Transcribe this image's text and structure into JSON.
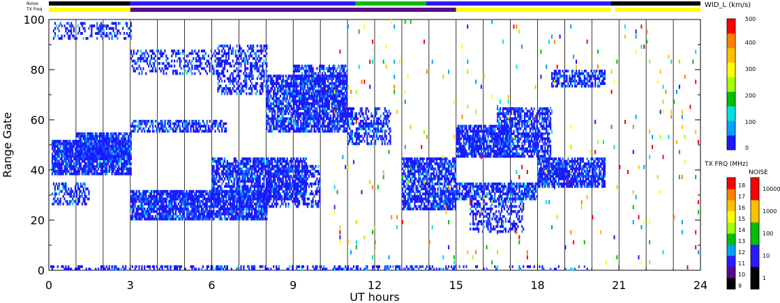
{
  "chart_data": {
    "type": "heatmap",
    "xlabel": "UT hours",
    "ylabel": "Range Gate",
    "xlim": [
      0,
      24
    ],
    "ylim": [
      0,
      100
    ],
    "x_ticks": [
      "0",
      "3",
      "6",
      "9",
      "12",
      "15",
      "18",
      "21",
      "24"
    ],
    "y_ticks": [
      "0",
      "20",
      "40",
      "60",
      "80",
      "100"
    ],
    "grid": "vertical lines each hour",
    "top_bar_labels": [
      "Noise",
      "TX Freq"
    ],
    "noise_bar": [
      {
        "start": 0,
        "end": 3,
        "level": "1"
      },
      {
        "start": 3,
        "end": 11.3,
        "level": "10"
      },
      {
        "start": 11.3,
        "end": 13.9,
        "level": "100"
      },
      {
        "start": 13.9,
        "end": 20.7,
        "level": "10"
      },
      {
        "start": 20.7,
        "end": 24,
        "level": "1"
      }
    ],
    "freq_bar": [
      {
        "start": 0,
        "end": 3,
        "freq_mhz": 14
      },
      {
        "start": 3,
        "end": 15,
        "freq_mhz": 11
      },
      {
        "start": 15,
        "end": 20.7,
        "freq_mhz": 14
      },
      {
        "start": 20.85,
        "end": 24,
        "freq_mhz": 14
      }
    ],
    "velocity_colorbar": {
      "title": "WID_L (km/s)",
      "ticks": [
        "0",
        "100",
        "200",
        "300",
        "400",
        "500"
      ],
      "range": [
        0,
        500
      ],
      "colors": [
        "#1a1aff",
        "#00a0ff",
        "#00e0e0",
        "#00c000",
        "#a0ff00",
        "#ffff00",
        "#ffc000",
        "#ff8000",
        "#ff0000"
      ]
    },
    "freq_colorbar": {
      "title": "TX FRQ (MHz)",
      "ticks": [
        "9",
        "10",
        "11",
        "12",
        "13",
        "14",
        "15",
        "16",
        "17",
        "18"
      ],
      "colors": [
        "#000000",
        "#5a0a8a",
        "#2a1aff",
        "#00a0ff",
        "#00c000",
        "#a0ff00",
        "#ffff00",
        "#ffc000",
        "#ff8000",
        "#ff0000"
      ]
    },
    "noise_colorbar": {
      "title": "NOISE",
      "ticks": [
        "1",
        "10",
        "100",
        "1000",
        "10000"
      ],
      "colors": [
        "#000000",
        "#2a1aff",
        "#00c000",
        "#ffc000",
        "#ff0000"
      ]
    },
    "bands": [
      {
        "t0": 0.1,
        "t1": 3.0,
        "g0": 38,
        "g1": 52,
        "density": 0.85
      },
      {
        "t0": 1.0,
        "t1": 3.0,
        "g0": 44,
        "g1": 55,
        "density": 0.8
      },
      {
        "t0": 0.1,
        "t1": 1.5,
        "g0": 26,
        "g1": 35,
        "density": 0.5
      },
      {
        "t0": 0.1,
        "t1": 3.0,
        "g0": 92,
        "g1": 99,
        "density": 0.35
      },
      {
        "t0": 3.0,
        "t1": 8.0,
        "g0": 20,
        "g1": 32,
        "density": 0.85
      },
      {
        "t0": 6.0,
        "t1": 9.5,
        "g0": 28,
        "g1": 45,
        "density": 0.75
      },
      {
        "t0": 8.0,
        "t1": 11.0,
        "g0": 55,
        "g1": 78,
        "density": 0.75
      },
      {
        "t0": 9.0,
        "t1": 11.0,
        "g0": 65,
        "g1": 82,
        "density": 0.6
      },
      {
        "t0": 8.0,
        "t1": 10.0,
        "g0": 25,
        "g1": 42,
        "density": 0.45
      },
      {
        "t0": 11.0,
        "t1": 12.6,
        "g0": 50,
        "g1": 65,
        "density": 0.55
      },
      {
        "t0": 3.0,
        "t1": 6.5,
        "g0": 55,
        "g1": 60,
        "density": 0.6
      },
      {
        "t0": 3.0,
        "t1": 6.5,
        "g0": 78,
        "g1": 88,
        "density": 0.35
      },
      {
        "t0": 6.2,
        "t1": 8.0,
        "g0": 70,
        "g1": 90,
        "density": 0.45
      },
      {
        "t0": 13.0,
        "t1": 15.0,
        "g0": 24,
        "g1": 45,
        "density": 0.75
      },
      {
        "t0": 15.0,
        "t1": 17.0,
        "g0": 45,
        "g1": 58,
        "density": 0.8
      },
      {
        "t0": 15.0,
        "t1": 18.0,
        "g0": 28,
        "g1": 35,
        "density": 0.75
      },
      {
        "t0": 16.5,
        "t1": 18.5,
        "g0": 45,
        "g1": 65,
        "density": 0.7
      },
      {
        "t0": 18.0,
        "t1": 20.5,
        "g0": 33,
        "g1": 45,
        "density": 0.8
      },
      {
        "t0": 18.5,
        "t1": 20.5,
        "g0": 73,
        "g1": 80,
        "density": 0.6
      },
      {
        "t0": 15.5,
        "t1": 17.5,
        "g0": 15,
        "g1": 28,
        "density": 0.45
      },
      {
        "t0": 0.0,
        "t1": 15.0,
        "g0": 0,
        "g1": 2,
        "density": 0.45
      },
      {
        "t0": 15.0,
        "t1": 20.0,
        "g0": 0,
        "g1": 2,
        "density": 0.2
      }
    ],
    "noise_region": {
      "t0": 10.5,
      "t1": 24,
      "density": 0.04
    }
  }
}
